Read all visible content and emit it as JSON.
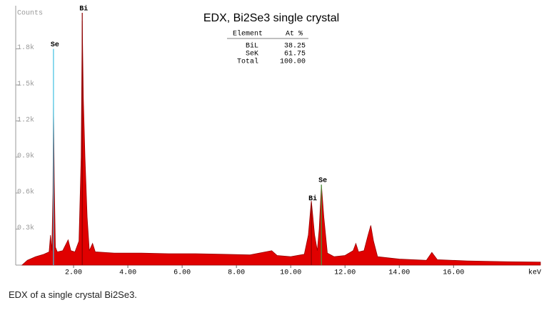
{
  "chart_data": {
    "type": "area",
    "title": "EDX, Bi2Se3 single crystal",
    "y_label": "Counts",
    "x_label": "keV",
    "caption": "EDX of a single crystal Bi2Se3.",
    "table": {
      "header": [
        "Element",
        "At %"
      ],
      "rows": [
        [
          "BiL",
          "38.25"
        ],
        [
          "SeK",
          "61.75"
        ],
        [
          "Total",
          "100.00"
        ]
      ]
    },
    "x": [
      0.1,
      0.3,
      0.6,
      0.9,
      1.1,
      1.15,
      1.2,
      1.24,
      1.26,
      1.29,
      1.33,
      1.4,
      1.6,
      1.8,
      1.9,
      2.05,
      2.2,
      2.28,
      2.32,
      2.36,
      2.42,
      2.5,
      2.58,
      2.7,
      2.8,
      3.5,
      4.5,
      5.5,
      6.5,
      7.5,
      8.5,
      9.3,
      9.5,
      10.0,
      10.5,
      10.65,
      10.76,
      10.88,
      10.98,
      11.05,
      11.13,
      11.22,
      11.35,
      11.6,
      12.0,
      12.3,
      12.4,
      12.5,
      12.7,
      12.85,
      12.95,
      13.05,
      13.2,
      14.0,
      15.0,
      15.2,
      15.4,
      16.5,
      18.0,
      19.2
    ],
    "series": [
      {
        "color": "#e00000",
        "values": [
          0,
          40,
          70,
          90,
          110,
          250,
          120,
          600,
          1360,
          700,
          150,
          110,
          120,
          210,
          120,
          110,
          200,
          900,
          2035,
          1390,
          900,
          400,
          120,
          180,
          110,
          100,
          100,
          95,
          95,
          90,
          85,
          120,
          80,
          70,
          90,
          250,
          535,
          250,
          120,
          300,
          670,
          400,
          100,
          70,
          80,
          120,
          180,
          110,
          120,
          250,
          330,
          200,
          70,
          50,
          40,
          106,
          45,
          35,
          28,
          25
        ]
      }
    ],
    "markers": [
      {
        "label": "Se",
        "x": 1.26,
        "y": 1800,
        "color": "#40c0e0"
      },
      {
        "label": "Bi",
        "x": 2.32,
        "y": 2100,
        "color": "#8b0000"
      },
      {
        "label": "Bi",
        "x": 10.76,
        "y": 520,
        "color": "#8b0000"
      },
      {
        "label": "Se",
        "x": 11.13,
        "y": 670,
        "color": "#40a040"
      }
    ],
    "xlim": [
      0,
      19.2
    ],
    "ylim": [
      0,
      2100
    ],
    "xticks": [
      {
        "value": 2,
        "label": "2.00"
      },
      {
        "value": 4,
        "label": "4.00"
      },
      {
        "value": 6,
        "label": "6.00"
      },
      {
        "value": 8,
        "label": "8.00"
      },
      {
        "value": 10,
        "label": "10.00"
      },
      {
        "value": 12,
        "label": "12.00"
      },
      {
        "value": 14,
        "label": "14.00"
      },
      {
        "value": 16,
        "label": "16.00"
      }
    ],
    "yticks": [
      {
        "value": 300,
        "label": "0.3k"
      },
      {
        "value": 600,
        "label": "0.6k"
      },
      {
        "value": 900,
        "label": "0.9k"
      },
      {
        "value": 1200,
        "label": "1.2k"
      },
      {
        "value": 1500,
        "label": "1.5k"
      },
      {
        "value": 1800,
        "label": "1.8k"
      }
    ]
  }
}
